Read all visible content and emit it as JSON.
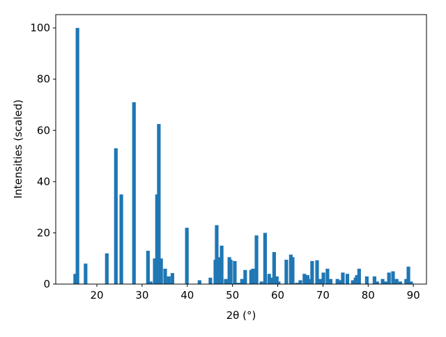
{
  "chart_data": {
    "type": "bar",
    "xlabel": "2θ (°)",
    "ylabel": "Intensities (scaled)",
    "color": "#1f77b4",
    "x": [
      15.2,
      15.7,
      17.5,
      22.2,
      24.2,
      25.4,
      28.2,
      31.3,
      31.9,
      32.8,
      33.3,
      33.7,
      34.2,
      35.1,
      35.9,
      36.7,
      39.9,
      42.7,
      45.1,
      46.2,
      46.5,
      47.0,
      47.6,
      48.5,
      49.3,
      49.6,
      50.5,
      51.3,
      52.1,
      52.8,
      54.1,
      54.5,
      55.3,
      56.4,
      57.2,
      58.1,
      58.7,
      59.2,
      59.8,
      60.2,
      61.9,
      62.9,
      63.3,
      64.2,
      65.0,
      65.9,
      66.6,
      67.0,
      67.6,
      68.7,
      69.3,
      70.1,
      71.0,
      71.7,
      73.2,
      73.7,
      74.4,
      75.4,
      76.6,
      77.2,
      77.5,
      78.0,
      79.7,
      81.4,
      82.0,
      83.2,
      83.8,
      84.6,
      85.5,
      86.3,
      87.1,
      88.4,
      88.9,
      89.5
    ],
    "values": [
      4,
      100,
      8,
      12,
      53,
      35,
      71,
      13,
      1,
      10,
      35,
      62.5,
      10,
      6,
      3,
      4.3,
      22,
      1.5,
      2.5,
      9.5,
      23,
      10.5,
      15,
      2,
      10.5,
      9.5,
      9,
      0.5,
      2,
      5.5,
      5.5,
      6,
      19,
      1,
      20,
      4,
      2.5,
      12.5,
      3,
      1,
      9.5,
      11.5,
      10.5,
      0.5,
      1.5,
      4,
      3.5,
      2,
      9,
      9.3,
      2,
      4.5,
      6,
      2,
      2,
      1.5,
      4.5,
      4,
      1.5,
      2.5,
      3.5,
      6,
      3,
      3,
      1,
      2,
      1,
      4.5,
      5,
      2,
      1,
      2,
      6.8,
      1
    ],
    "xlim": [
      10.9,
      92.9
    ],
    "xticks": [
      20,
      30,
      40,
      50,
      60,
      70,
      80,
      90
    ],
    "ylim": [
      0,
      105.2
    ],
    "yticks": [
      0,
      20,
      40,
      60,
      80,
      100
    ]
  }
}
